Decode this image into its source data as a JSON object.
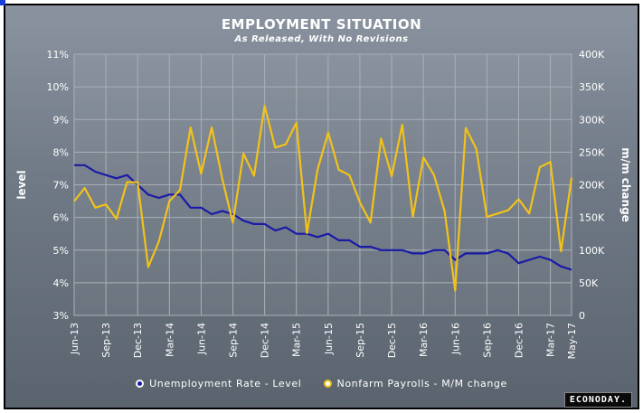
{
  "chart_data": {
    "type": "line",
    "title": "EMPLOYMENT SITUATION",
    "subtitle": "As Released, With No Revisions",
    "ylabel_left": "level",
    "ylabel_right": "m/m change",
    "y_left_ticks": [
      "3%",
      "4%",
      "5%",
      "6%",
      "7%",
      "8%",
      "9%",
      "10%",
      "11%"
    ],
    "y_right_ticks": [
      "0",
      "50K",
      "100K",
      "150K",
      "200K",
      "250K",
      "300K",
      "350K",
      "400K"
    ],
    "ylim_left": [
      3,
      11
    ],
    "ylim_right": [
      0,
      400
    ],
    "x_tick_labels": [
      "Jun-13",
      "Sep-13",
      "Dec-13",
      "Mar-14",
      "Jun-14",
      "Sep-14",
      "Dec-14",
      "Mar-15",
      "Jun-15",
      "Sep-15",
      "Dec-15",
      "Mar-16",
      "Jun-16",
      "Sep-16",
      "Dec-16",
      "Mar-17",
      "May-17"
    ],
    "x_tick_index": [
      0,
      3,
      6,
      9,
      12,
      15,
      18,
      21,
      24,
      27,
      30,
      33,
      36,
      39,
      42,
      45,
      47
    ],
    "months": [
      "Jun-13",
      "Jul-13",
      "Aug-13",
      "Sep-13",
      "Oct-13",
      "Nov-13",
      "Dec-13",
      "Jan-14",
      "Feb-14",
      "Mar-14",
      "Apr-14",
      "May-14",
      "Jun-14",
      "Jul-14",
      "Aug-14",
      "Sep-14",
      "Oct-14",
      "Nov-14",
      "Dec-14",
      "Jan-15",
      "Feb-15",
      "Mar-15",
      "Apr-15",
      "May-15",
      "Jun-15",
      "Jul-15",
      "Aug-15",
      "Sep-15",
      "Oct-15",
      "Nov-15",
      "Dec-15",
      "Jan-16",
      "Feb-16",
      "Mar-16",
      "Apr-16",
      "May-16",
      "Jun-16",
      "Jul-16",
      "Aug-16",
      "Sep-16",
      "Oct-16",
      "Nov-16",
      "Dec-16",
      "Jan-17",
      "Feb-17",
      "Mar-17",
      "Apr-17",
      "May-17"
    ],
    "series": [
      {
        "name": "Unemployment Rate - Level",
        "axis": "left",
        "color": "#1a1aa6",
        "values": [
          7.6,
          7.6,
          7.4,
          7.3,
          7.2,
          7.3,
          7.0,
          6.7,
          6.6,
          6.7,
          6.7,
          6.3,
          6.3,
          6.1,
          6.2,
          6.1,
          5.9,
          5.8,
          5.8,
          5.6,
          5.7,
          5.5,
          5.5,
          5.4,
          5.5,
          5.3,
          5.3,
          5.1,
          5.1,
          5.0,
          5.0,
          5.0,
          4.9,
          4.9,
          5.0,
          5.0,
          4.7,
          4.9,
          4.9,
          4.9,
          5.0,
          4.9,
          4.6,
          4.7,
          4.8,
          4.7,
          4.5,
          4.4
        ]
      },
      {
        "name": "Nonfarm Payrolls - M/M change",
        "axis": "right",
        "color": "#f2c21a",
        "values": [
          175,
          195,
          165,
          170,
          148,
          204,
          204,
          74,
          113,
          175,
          192,
          288,
          217,
          288,
          209,
          142,
          248,
          214,
          321,
          257,
          262,
          295,
          126,
          223,
          280,
          223,
          215,
          173,
          142,
          271,
          213,
          292,
          151,
          242,
          215,
          160,
          38,
          287,
          255,
          151,
          156,
          161,
          178,
          156,
          227,
          235,
          98,
          211
        ]
      }
    ],
    "legend_position": "bottom",
    "grid": true
  },
  "legend": {
    "items": [
      {
        "label": "Unemployment Rate - Level",
        "color": "#1a1aa6"
      },
      {
        "label": "Nonfarm Payrolls - M/M change",
        "color": "#f2c21a"
      }
    ]
  },
  "logo": {
    "text": "ECONODAY."
  }
}
